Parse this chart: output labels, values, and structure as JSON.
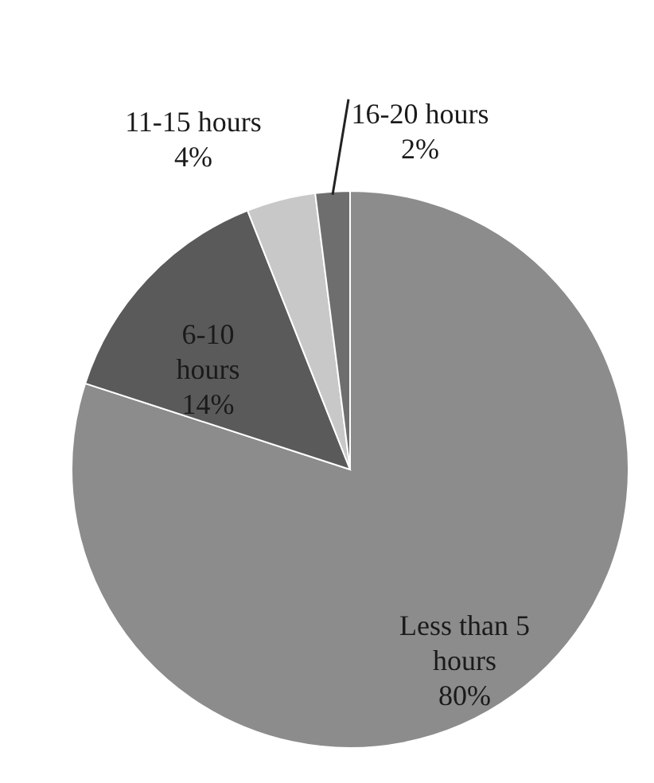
{
  "chart_data": {
    "type": "pie",
    "categories": [
      "Less than 5 hours",
      "6-10 hours",
      "11-15 hours",
      "16-20 hours"
    ],
    "values": [
      80,
      14,
      4,
      2
    ],
    "value_labels": [
      "80%",
      "14%",
      "4%",
      "2%"
    ],
    "colors": [
      "#8c8c8c",
      "#5a5a5a",
      "#c8c8c8",
      "#6e6e6e"
    ]
  }
}
